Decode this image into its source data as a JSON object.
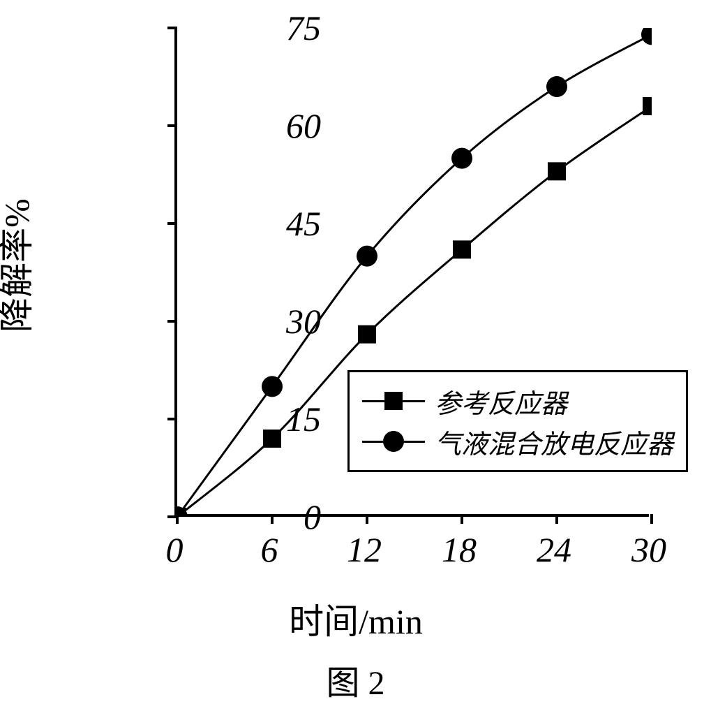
{
  "chart": {
    "type": "line",
    "ylabel": "降解率%",
    "xlabel": "时间/min",
    "caption": "图 2",
    "background_color": "#ffffff",
    "axis_color": "#000000",
    "axis_width": 4,
    "xlim": [
      0,
      30
    ],
    "ylim": [
      0,
      75
    ],
    "xtick_step": 6,
    "ytick_step": 15,
    "xticks": [
      0,
      6,
      12,
      18,
      24,
      30
    ],
    "yticks": [
      0,
      15,
      30,
      45,
      60,
      75
    ],
    "font_size_axis": 50,
    "font_size_legend": 38,
    "font_family": "SimSun",
    "series": [
      {
        "label": "参考反应器",
        "marker": "square",
        "marker_size": 26,
        "line_width": 3,
        "line_color": "#000000",
        "marker_color": "#000000",
        "x": [
          0,
          6,
          12,
          18,
          24,
          30
        ],
        "y": [
          0,
          12,
          28,
          41,
          53,
          63
        ]
      },
      {
        "label": "气液混合放电反应器",
        "marker": "circle",
        "marker_size": 30,
        "line_width": 3,
        "line_color": "#000000",
        "marker_color": "#000000",
        "x": [
          0,
          6,
          12,
          18,
          24,
          30
        ],
        "y": [
          0,
          20,
          40,
          55,
          66,
          74
        ]
      }
    ],
    "legend": {
      "position": "inside-lower-right",
      "border_color": "#000000",
      "border_width": 3,
      "background": "#ffffff"
    }
  }
}
